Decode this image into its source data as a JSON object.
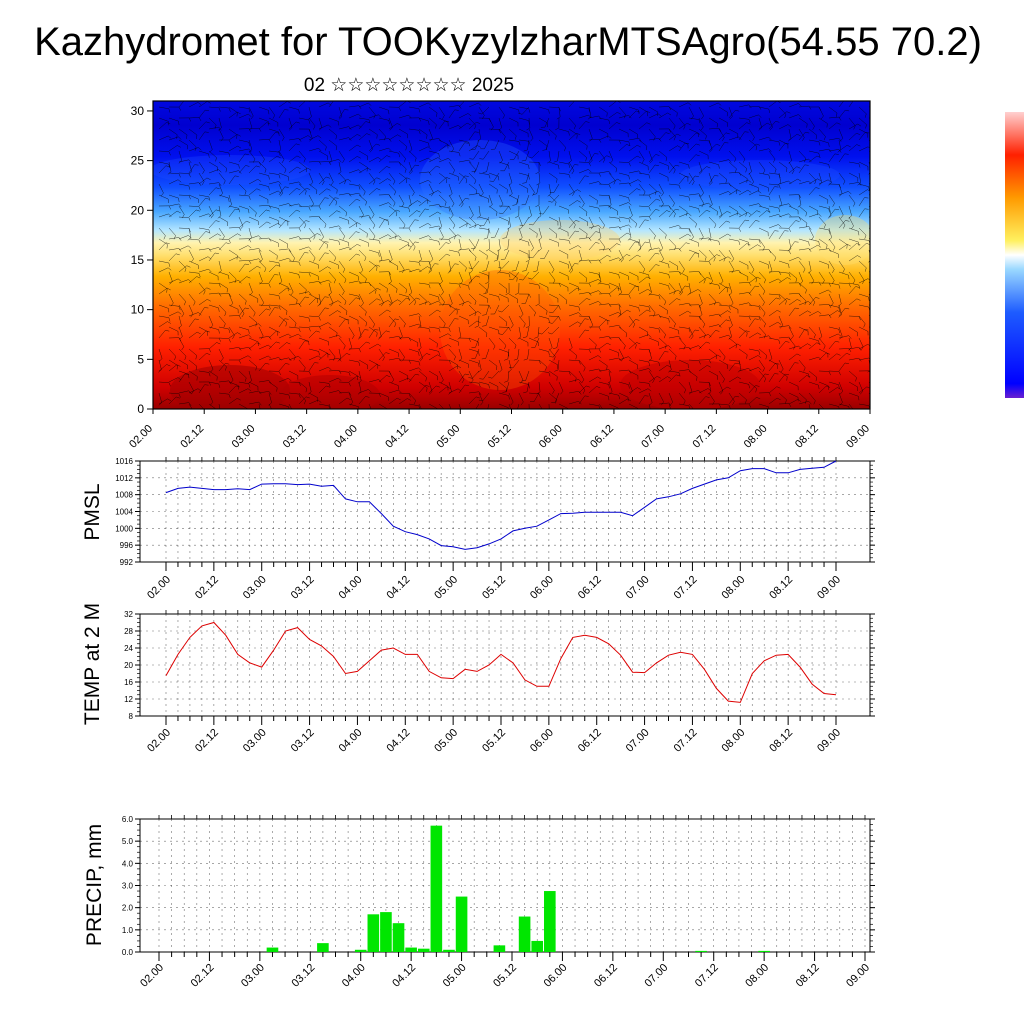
{
  "title": "Kazhydromet for TOOKyzylzharMTSAgro(54.55 70.2)",
  "subtitle": "02 ☆☆☆☆☆☆☆☆ 2025",
  "time_labels": [
    "02.00",
    "02.12",
    "03.00",
    "03.12",
    "04.00",
    "04.12",
    "05.00",
    "05.12",
    "06.00",
    "06.12",
    "07.00",
    "07.12",
    "08.00",
    "08.12",
    "09.00"
  ],
  "chart_data": [
    {
      "type": "heatmap",
      "title": "",
      "xlabel": "",
      "ylabel": "",
      "ylim": [
        0,
        31
      ],
      "yticks": [
        0,
        5,
        10,
        15,
        20,
        25,
        30
      ],
      "color_scale": [
        "#6600cc",
        "#0000ff",
        "#0a3cff",
        "#3c8cff",
        "#8cd2ff",
        "#fff08c",
        "#ffd200",
        "#ff9600",
        "#ff4600",
        "#e60000",
        "#a00000"
      ],
      "overlay": "wind barbs"
    },
    {
      "type": "line",
      "ylabel": "PMSL",
      "ylim": [
        992,
        1016
      ],
      "yticks": [
        992,
        996,
        1000,
        1004,
        1008,
        1012,
        1016
      ],
      "color": "#0000cc",
      "x_step_hours": 3,
      "values": [
        1008.5,
        1009.5,
        1009.8,
        1009.5,
        1009.2,
        1009.2,
        1009.4,
        1009.2,
        1010.5,
        1010.6,
        1010.6,
        1010.4,
        1010.5,
        1010,
        1010.2,
        1007,
        1006.3,
        1006.3,
        1003.5,
        1000.5,
        999.2,
        998.5,
        997.5,
        995.9,
        995.6,
        995,
        995.4,
        996.3,
        997.5,
        999.4,
        1000,
        1000.5,
        1002,
        1003.5,
        1003.6,
        1003.8,
        1003.8,
        1003.8,
        1003.8,
        1003,
        1005,
        1007,
        1007.5,
        1008.2,
        1009.5,
        1010.5,
        1011.5,
        1012,
        1013.7,
        1014.2,
        1014.2,
        1013.2,
        1013.2,
        1014,
        1014.3,
        1014.5,
        1016
      ]
    },
    {
      "type": "line",
      "ylabel": "TEMP at 2 M",
      "ylim": [
        8,
        32
      ],
      "yticks": [
        8,
        12,
        16,
        20,
        24,
        28,
        32
      ],
      "color": "#dd0000",
      "x_step_hours": 3,
      "values": [
        17.5,
        22.5,
        26.5,
        29.2,
        30,
        27,
        22.5,
        20.5,
        19.5,
        23.5,
        28,
        28.8,
        26,
        24.5,
        22,
        18,
        18.5,
        21,
        23.5,
        24,
        22.5,
        22.5,
        18.5,
        17,
        16.8,
        19,
        18.5,
        20,
        22.5,
        20.5,
        16.5,
        15,
        15,
        21.5,
        26.5,
        27,
        26.5,
        25,
        22.3,
        18.3,
        18.2,
        20.5,
        22.3,
        23,
        22.5,
        19,
        14.5,
        11.5,
        11.2,
        18,
        21,
        22.3,
        22.5,
        19.5,
        15.5,
        13.3,
        13
      ]
    },
    {
      "type": "bar",
      "ylabel": "PRECIP, mm",
      "ylim": [
        0,
        6
      ],
      "yticks": [
        "0.0",
        "1.0",
        "2.0",
        "3.0",
        "4.0",
        "5.0",
        "6.0"
      ],
      "color": "#00e600",
      "x_step_hours": 3,
      "values": [
        0,
        0,
        0,
        0,
        0,
        0,
        0,
        0,
        0,
        0.2,
        0,
        0,
        0,
        0.4,
        0,
        0,
        0.1,
        1.7,
        1.8,
        1.3,
        0.2,
        0.15,
        5.7,
        0.1,
        2.5,
        0,
        0,
        0.3,
        0,
        1.6,
        0.5,
        2.75,
        0,
        0,
        0,
        0,
        0,
        0,
        0,
        0,
        0,
        0,
        0,
        0.05,
        0,
        0,
        0,
        0,
        0.05,
        0,
        0,
        0,
        0,
        0,
        0,
        0,
        0
      ]
    }
  ]
}
